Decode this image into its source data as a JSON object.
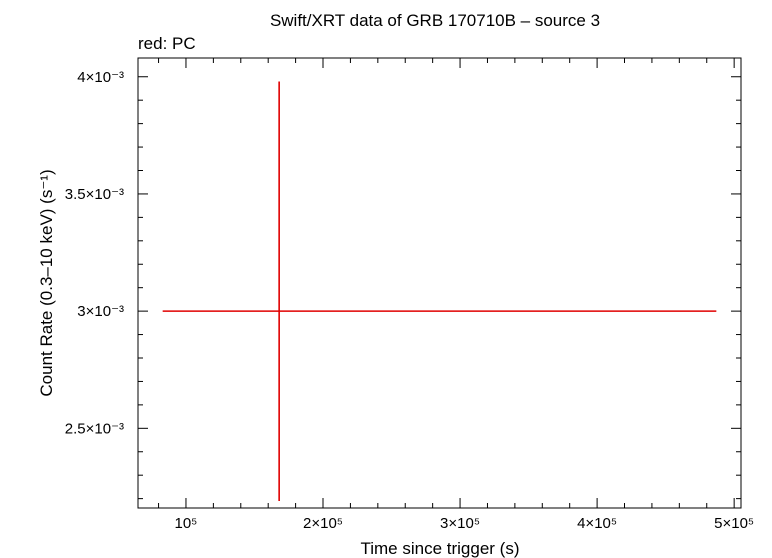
{
  "chart_data": {
    "type": "scatter",
    "title": "Swift/XRT data of GRB 170710B – source 3",
    "subtitle": "red: PC",
    "xlabel": "Time since trigger (s)",
    "ylabel": "Count Rate (0.3–10 keV) (s⁻¹)",
    "xlim": [
      65000,
      505000
    ],
    "ylim": [
      0.00216,
      0.00408
    ],
    "x_ticks": [
      {
        "value": 100000,
        "label": "10⁵"
      },
      {
        "value": 200000,
        "label": "2×10⁵"
      },
      {
        "value": 300000,
        "label": "3×10⁵"
      },
      {
        "value": 400000,
        "label": "4×10⁵"
      },
      {
        "value": 500000,
        "label": "5×10⁵"
      }
    ],
    "y_ticks": [
      {
        "value": 0.0025,
        "label": "2.5×10⁻³"
      },
      {
        "value": 0.003,
        "label": "3×10⁻³"
      },
      {
        "value": 0.0035,
        "label": "3.5×10⁻³"
      },
      {
        "value": 0.004,
        "label": "4×10⁻³"
      }
    ],
    "series": [
      {
        "color": "#e00000",
        "points": [
          {
            "x": 168000,
            "xerr_low": 83000,
            "xerr_high": 487000,
            "y": 0.003,
            "yerr_low": 0.00219,
            "yerr_high": 0.00398
          }
        ]
      }
    ],
    "grid": false
  }
}
